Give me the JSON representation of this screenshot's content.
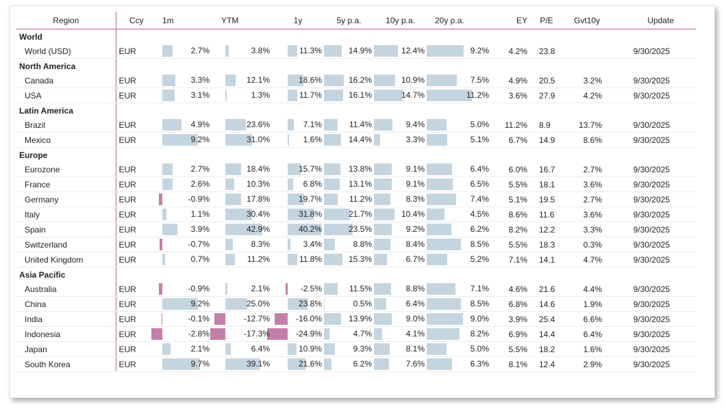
{
  "colors": {
    "positive": "#c5d5e0",
    "negative": "#c47fa8",
    "divider": "#b8609a"
  },
  "chart_data": {
    "type": "table",
    "columns": [
      "Region",
      "Ccy",
      "1m",
      "YTM",
      "1y",
      "5y p.a.",
      "10y p.a.",
      "20y p.a.",
      "EY",
      "P/E",
      "Gvt10y",
      "Update"
    ],
    "bar_columns": [
      "1m",
      "YTM",
      "1y",
      "5y p.a.",
      "10y p.a.",
      "20y p.a."
    ],
    "groups": [
      {
        "name": "World",
        "rows": [
          {
            "region": "World (USD)",
            "ccy": "EUR",
            "m1": 2.7,
            "m1_t": "2.7%",
            "ytm": 3.8,
            "ytm_t": "3.8%",
            "y1": 11.3,
            "y1_t": "11.3%",
            "y5": 14.9,
            "y5_t": "14.9%",
            "y10": 12.4,
            "y10_t": "12.4%",
            "y20": 9.2,
            "y20_t": "9.2%",
            "ey": "4.2%",
            "pe": "23.8",
            "gvt": "",
            "update": "9/30/2025"
          }
        ]
      },
      {
        "name": "North America",
        "rows": [
          {
            "region": "Canada",
            "ccy": "EUR",
            "m1": 3.3,
            "m1_t": "3.3%",
            "ytm": 12.1,
            "ytm_t": "12.1%",
            "y1": 18.6,
            "y1_t": "18.6%",
            "y5": 16.2,
            "y5_t": "16.2%",
            "y10": 10.9,
            "y10_t": "10.9%",
            "y20": 7.5,
            "y20_t": "7.5%",
            "ey": "4.9%",
            "pe": "20.5",
            "gvt": "3.2%",
            "update": "9/30/2025"
          },
          {
            "region": "USA",
            "ccy": "EUR",
            "m1": 3.1,
            "m1_t": "3.1%",
            "ytm": 1.3,
            "ytm_t": "1.3%",
            "y1": 11.7,
            "y1_t": "11.7%",
            "y5": 16.1,
            "y5_t": "16.1%",
            "y10": 14.7,
            "y10_t": "14.7%",
            "y20": 11.2,
            "y20_t": "11.2%",
            "ey": "3.6%",
            "pe": "27.9",
            "gvt": "4.2%",
            "update": "9/30/2025"
          }
        ]
      },
      {
        "name": "Latin America",
        "rows": [
          {
            "region": "Brazil",
            "ccy": "EUR",
            "m1": 4.9,
            "m1_t": "4.9%",
            "ytm": 23.6,
            "ytm_t": "23.6%",
            "y1": 7.1,
            "y1_t": "7.1%",
            "y5": 11.4,
            "y5_t": "11.4%",
            "y10": 9.4,
            "y10_t": "9.4%",
            "y20": 5.0,
            "y20_t": "5.0%",
            "ey": "11.2%",
            "pe": "8.9",
            "gvt": "13.7%",
            "update": "9/30/2025"
          },
          {
            "region": "Mexico",
            "ccy": "EUR",
            "m1": 9.2,
            "m1_t": "9.2%",
            "ytm": 31.0,
            "ytm_t": "31.0%",
            "y1": 1.6,
            "y1_t": "1.6%",
            "y5": 14.4,
            "y5_t": "14.4%",
            "y10": 3.3,
            "y10_t": "3.3%",
            "y20": 5.1,
            "y20_t": "5.1%",
            "ey": "6.7%",
            "pe": "14.9",
            "gvt": "8.6%",
            "update": "9/30/2025"
          }
        ]
      },
      {
        "name": "Europe",
        "rows": [
          {
            "region": "Eurozone",
            "ccy": "EUR",
            "m1": 2.7,
            "m1_t": "2.7%",
            "ytm": 18.4,
            "ytm_t": "18.4%",
            "y1": 15.7,
            "y1_t": "15.7%",
            "y5": 13.8,
            "y5_t": "13.8%",
            "y10": 9.1,
            "y10_t": "9.1%",
            "y20": 6.4,
            "y20_t": "6.4%",
            "ey": "6.0%",
            "pe": "16.7",
            "gvt": "2.7%",
            "update": "9/30/2025"
          },
          {
            "region": "France",
            "ccy": "EUR",
            "m1": 2.6,
            "m1_t": "2.6%",
            "ytm": 10.3,
            "ytm_t": "10.3%",
            "y1": 6.8,
            "y1_t": "6.8%",
            "y5": 13.1,
            "y5_t": "13.1%",
            "y10": 9.1,
            "y10_t": "9.1%",
            "y20": 6.5,
            "y20_t": "6.5%",
            "ey": "5.5%",
            "pe": "18.1",
            "gvt": "3.6%",
            "update": "9/30/2025"
          },
          {
            "region": "Germany",
            "ccy": "EUR",
            "m1": -0.9,
            "m1_t": "-0.9%",
            "ytm": 17.8,
            "ytm_t": "17.8%",
            "y1": 19.7,
            "y1_t": "19.7%",
            "y5": 11.2,
            "y5_t": "11.2%",
            "y10": 8.3,
            "y10_t": "8.3%",
            "y20": 7.4,
            "y20_t": "7.4%",
            "ey": "5.1%",
            "pe": "19.5",
            "gvt": "2.7%",
            "update": "9/30/2025"
          },
          {
            "region": "Italy",
            "ccy": "EUR",
            "m1": 1.1,
            "m1_t": "1.1%",
            "ytm": 30.4,
            "ytm_t": "30.4%",
            "y1": 31.8,
            "y1_t": "31.8%",
            "y5": 21.7,
            "y5_t": "21.7%",
            "y10": 10.4,
            "y10_t": "10.4%",
            "y20": 4.5,
            "y20_t": "4.5%",
            "ey": "8.6%",
            "pe": "11.6",
            "gvt": "3.6%",
            "update": "9/30/2025"
          },
          {
            "region": "Spain",
            "ccy": "EUR",
            "m1": 3.9,
            "m1_t": "3.9%",
            "ytm": 42.9,
            "ytm_t": "42.9%",
            "y1": 40.2,
            "y1_t": "40.2%",
            "y5": 23.5,
            "y5_t": "23.5%",
            "y10": 9.2,
            "y10_t": "9.2%",
            "y20": 6.2,
            "y20_t": "6.2%",
            "ey": "8.2%",
            "pe": "12.2",
            "gvt": "3.3%",
            "update": "9/30/2025"
          },
          {
            "region": "Switzerland",
            "ccy": "EUR",
            "m1": -0.7,
            "m1_t": "-0.7%",
            "ytm": 8.3,
            "ytm_t": "8.3%",
            "y1": 3.4,
            "y1_t": "3.4%",
            "y5": 8.8,
            "y5_t": "8.8%",
            "y10": 8.4,
            "y10_t": "8.4%",
            "y20": 8.5,
            "y20_t": "8.5%",
            "ey": "5.5%",
            "pe": "18.3",
            "gvt": "0.3%",
            "update": "9/30/2025"
          },
          {
            "region": "United Kingdom",
            "ccy": "EUR",
            "m1": 0.7,
            "m1_t": "0.7%",
            "ytm": 11.2,
            "ytm_t": "11.2%",
            "y1": 11.8,
            "y1_t": "11.8%",
            "y5": 15.3,
            "y5_t": "15.3%",
            "y10": 6.7,
            "y10_t": "6.7%",
            "y20": 5.2,
            "y20_t": "5.2%",
            "ey": "7.1%",
            "pe": "14.1",
            "gvt": "4.7%",
            "update": "9/30/2025"
          }
        ]
      },
      {
        "name": "Asia Pacific",
        "rows": [
          {
            "region": "Australia",
            "ccy": "EUR",
            "m1": -0.9,
            "m1_t": "-0.9%",
            "ytm": 2.1,
            "ytm_t": "2.1%",
            "y1": -2.5,
            "y1_t": "-2.5%",
            "y5": 11.5,
            "y5_t": "11.5%",
            "y10": 8.8,
            "y10_t": "8.8%",
            "y20": 7.1,
            "y20_t": "7.1%",
            "ey": "4.6%",
            "pe": "21.6",
            "gvt": "4.4%",
            "update": "9/30/2025"
          },
          {
            "region": "China",
            "ccy": "EUR",
            "m1": 9.2,
            "m1_t": "9.2%",
            "ytm": 25.0,
            "ytm_t": "25.0%",
            "y1": 23.8,
            "y1_t": "23.8%",
            "y5": 0.5,
            "y5_t": "0.5%",
            "y10": 6.4,
            "y10_t": "6.4%",
            "y20": 8.5,
            "y20_t": "8.5%",
            "ey": "6.8%",
            "pe": "14.6",
            "gvt": "1.9%",
            "update": "9/30/2025"
          },
          {
            "region": "India",
            "ccy": "EUR",
            "m1": -0.1,
            "m1_t": "-0.1%",
            "ytm": -12.7,
            "ytm_t": "-12.7%",
            "y1": -16.0,
            "y1_t": "-16.0%",
            "y5": 13.9,
            "y5_t": "13.9%",
            "y10": 9.0,
            "y10_t": "9.0%",
            "y20": 9.0,
            "y20_t": "9.0%",
            "ey": "3.9%",
            "pe": "25.4",
            "gvt": "6.6%",
            "update": "9/30/2025"
          },
          {
            "region": "Indonesia",
            "ccy": "EUR",
            "m1": -2.8,
            "m1_t": "-2.8%",
            "ytm": -17.3,
            "ytm_t": "-17.3%",
            "y1": -24.9,
            "y1_t": "-24.9%",
            "y5": 4.7,
            "y5_t": "4.7%",
            "y10": 4.1,
            "y10_t": "4.1%",
            "y20": 8.2,
            "y20_t": "8.2%",
            "ey": "6.9%",
            "pe": "14.4",
            "gvt": "6.4%",
            "update": "9/30/2025"
          },
          {
            "region": "Japan",
            "ccy": "EUR",
            "m1": 2.1,
            "m1_t": "2.1%",
            "ytm": 6.4,
            "ytm_t": "6.4%",
            "y1": 10.9,
            "y1_t": "10.9%",
            "y5": 9.3,
            "y5_t": "9.3%",
            "y10": 8.1,
            "y10_t": "8.1%",
            "y20": 5.0,
            "y20_t": "5.0%",
            "ey": "5.5%",
            "pe": "18.2",
            "gvt": "1.6%",
            "update": "9/30/2025"
          },
          {
            "region": "South Korea",
            "ccy": "EUR",
            "m1": 9.7,
            "m1_t": "9.7%",
            "ytm": 39.1,
            "ytm_t": "39.1%",
            "y1": 21.6,
            "y1_t": "21.6%",
            "y5": 6.2,
            "y5_t": "6.2%",
            "y10": 7.6,
            "y10_t": "7.6%",
            "y20": 6.3,
            "y20_t": "6.3%",
            "ey": "8.1%",
            "pe": "12.4",
            "gvt": "2.9%",
            "update": "9/30/2025"
          }
        ]
      }
    ]
  }
}
